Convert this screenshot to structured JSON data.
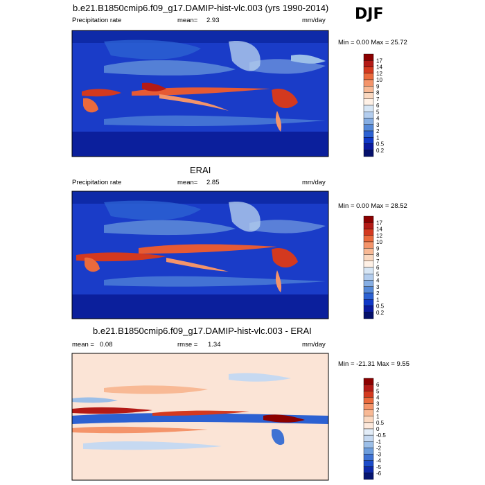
{
  "season": "DJF",
  "panels": [
    {
      "title": "b.e21.B1850cmip6.f09_g17.DAMIP-hist-vlc.003 (yrs 1990-2014)",
      "left_label": "Precipitation rate",
      "mean_label": "mean=",
      "mean_value": "2.93",
      "units": "mm/day",
      "minmax": "Min =   0.00 Max =  25.72",
      "colorbar": {
        "levels": [
          "17",
          "14",
          "12",
          "10",
          "9",
          "8",
          "7",
          "6",
          "5",
          "4",
          "3",
          "2",
          "1",
          "0.5",
          "0.2"
        ],
        "colors": [
          "#8b0000",
          "#b31a16",
          "#d3391f",
          "#ea6a3d",
          "#f4946a",
          "#f8b995",
          "#fad8c0",
          "#fff1e6",
          "#d7e6f5",
          "#b3cdee",
          "#86aee3",
          "#5689d8",
          "#2c61d2",
          "#1038c7",
          "#0a1a9e",
          "#05106b"
        ]
      },
      "map_base": "#1a3cc8"
    },
    {
      "title": "ERAI",
      "left_label": "Precipitation rate",
      "mean_label": "mean=",
      "mean_value": "2.85",
      "units": "mm/day",
      "minmax": "Min =   0.00 Max =  28.52",
      "colorbar": {
        "levels": [
          "17",
          "14",
          "12",
          "10",
          "9",
          "8",
          "7",
          "6",
          "5",
          "4",
          "3",
          "2",
          "1",
          "0.5",
          "0.2"
        ],
        "colors": [
          "#8b0000",
          "#b31a16",
          "#d3391f",
          "#ea6a3d",
          "#f4946a",
          "#f8b995",
          "#fad8c0",
          "#fff1e6",
          "#d7e6f5",
          "#b3cdee",
          "#86aee3",
          "#5689d8",
          "#2c61d2",
          "#1038c7",
          "#0a1a9e",
          "#05106b"
        ]
      },
      "map_base": "#1a3cc8"
    },
    {
      "title": "b.e21.B1850cmip6.f09_g17.DAMIP-hist-vlc.003 - ERAI",
      "left_label": "mean =",
      "mean_value": "0.08",
      "rmse_label": "rmse =",
      "rmse_value": "1.34",
      "units": "mm/day",
      "minmax": "Min = -21.31 Max =   9.55",
      "colorbar": {
        "levels": [
          "6",
          "5",
          "4",
          "3",
          "2",
          "1",
          "0.5",
          "0",
          "-0.5",
          "-1",
          "-2",
          "-3",
          "-4",
          "-5",
          "-6"
        ],
        "colors": [
          "#8b0000",
          "#b31a16",
          "#d3391f",
          "#ea6a3d",
          "#f4946a",
          "#f8b995",
          "#fad8c0",
          "#fde9dc",
          "#e3edf8",
          "#c6d9f1",
          "#9cbfe8",
          "#6d9ddc",
          "#3f72d3",
          "#1c4bc9",
          "#0d28a8",
          "#061570"
        ]
      },
      "map_base": "#fbe4d6"
    }
  ]
}
